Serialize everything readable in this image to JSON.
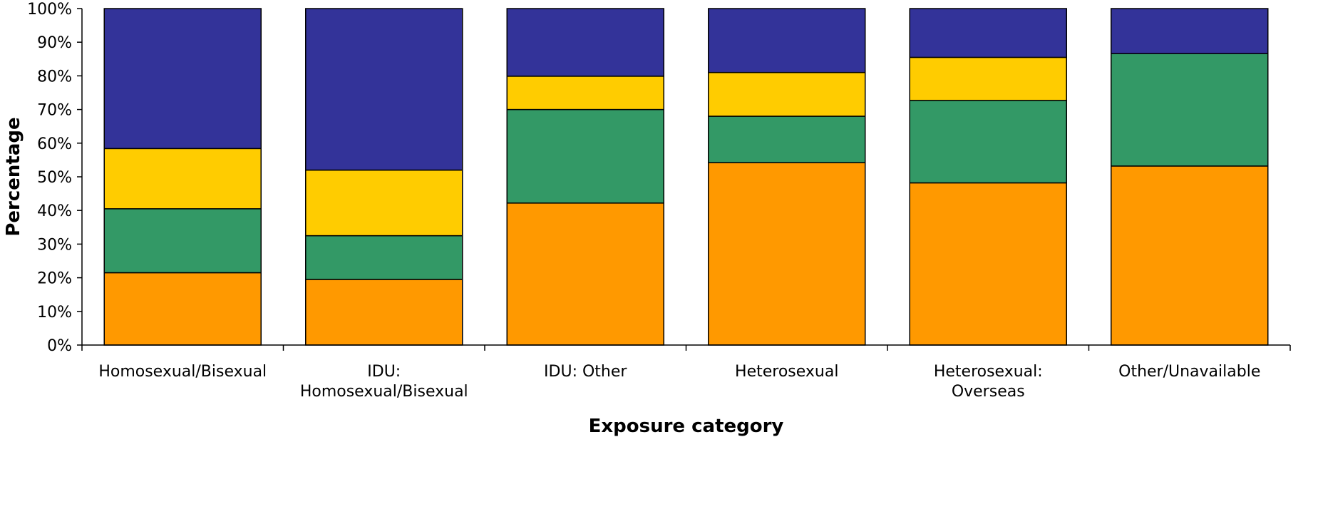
{
  "chart_data": {
    "type": "bar",
    "stacked": true,
    "percent": true,
    "title": "",
    "xlabel": "Exposure category",
    "ylabel": "Percentage",
    "ylim": [
      0,
      100
    ],
    "yticks": [
      "0%",
      "10%",
      "20%",
      "30%",
      "40%",
      "50%",
      "60%",
      "70%",
      "80%",
      "90%",
      "100%"
    ],
    "grid": false,
    "legend": "none",
    "categories": [
      [
        "Homosexual/Bisexual"
      ],
      [
        "IDU:",
        "Homosexual/Bisexual"
      ],
      [
        "IDU: Other"
      ],
      [
        "Heterosexual"
      ],
      [
        "Heterosexual:",
        "Overseas"
      ],
      [
        "Other/Unavailable"
      ]
    ],
    "series": [
      {
        "color": "#FF9900",
        "values": [
          21.5,
          19.5,
          42.2,
          54.2,
          48.2,
          53.2
        ]
      },
      {
        "color": "#339966",
        "values": [
          19.0,
          13.0,
          27.8,
          13.8,
          24.5,
          33.4
        ]
      },
      {
        "color": "#FFCC00",
        "values": [
          17.9,
          19.5,
          9.9,
          13.0,
          12.8,
          0.0
        ]
      },
      {
        "color": "#333399",
        "values": [
          41.6,
          48.0,
          20.1,
          19.0,
          14.5,
          13.4
        ]
      }
    ]
  }
}
